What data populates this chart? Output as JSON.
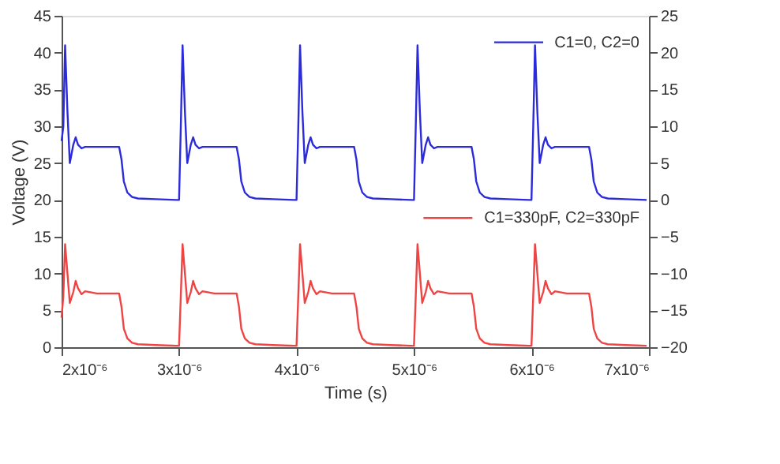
{
  "chart_data": {
    "type": "line",
    "xlabel": "Time (s)",
    "ylabel": "Voltage (V)",
    "x": [
      2e-06,
      2.015e-06,
      2.03e-06,
      2.05e-06,
      2.07e-06,
      2.1e-06,
      2.12e-06,
      2.14e-06,
      2.17e-06,
      2.2e-06,
      2.3e-06,
      2.49e-06,
      2.51e-06,
      2.53e-06,
      2.56e-06,
      2.6e-06,
      2.65e-06,
      2.8e-06,
      2.98e-06,
      3e-06,
      3.015e-06,
      3.03e-06,
      3.05e-06,
      3.07e-06,
      3.1e-06,
      3.12e-06,
      3.14e-06,
      3.17e-06,
      3.2e-06,
      3.3e-06,
      3.49e-06,
      3.51e-06,
      3.53e-06,
      3.56e-06,
      3.6e-06,
      3.65e-06,
      3.8e-06,
      3.98e-06,
      4e-06,
      4.015e-06,
      4.03e-06,
      4.05e-06,
      4.07e-06,
      4.1e-06,
      4.12e-06,
      4.14e-06,
      4.17e-06,
      4.2e-06,
      4.3e-06,
      4.49e-06,
      4.51e-06,
      4.53e-06,
      4.56e-06,
      4.6e-06,
      4.65e-06,
      4.8e-06,
      4.98e-06,
      5e-06,
      5.015e-06,
      5.03e-06,
      5.05e-06,
      5.07e-06,
      5.1e-06,
      5.12e-06,
      5.14e-06,
      5.17e-06,
      5.2e-06,
      5.3e-06,
      5.49e-06,
      5.51e-06,
      5.53e-06,
      5.56e-06,
      5.6e-06,
      5.65e-06,
      5.8e-06,
      5.98e-06,
      6e-06,
      6.015e-06,
      6.03e-06,
      6.05e-06,
      6.07e-06,
      6.1e-06,
      6.12e-06,
      6.14e-06,
      6.17e-06,
      6.2e-06,
      6.3e-06,
      6.49e-06,
      6.51e-06,
      6.53e-06,
      6.56e-06,
      6.6e-06,
      6.65e-06,
      6.8e-06,
      6.98e-06
    ],
    "series": [
      {
        "name": "C1=0, C2=0",
        "color": "#2b2bd9",
        "axis": "y2",
        "values": [
          8,
          10,
          21,
          12,
          5,
          7.5,
          8.5,
          7.5,
          7,
          7.2,
          7.2,
          7.2,
          5.5,
          2.5,
          1,
          0.4,
          0.2,
          0.1,
          0,
          0,
          10,
          21,
          12,
          5,
          7.5,
          8.5,
          7.5,
          7,
          7.2,
          7.2,
          7.2,
          5.5,
          2.5,
          1,
          0.4,
          0.2,
          0.1,
          0,
          0,
          10,
          21,
          12,
          5,
          7.5,
          8.5,
          7.5,
          7,
          7.2,
          7.2,
          7.2,
          5.5,
          2.5,
          1,
          0.4,
          0.2,
          0.1,
          0,
          0,
          10,
          21,
          12,
          5,
          7.5,
          8.5,
          7.5,
          7,
          7.2,
          7.2,
          7.2,
          5.5,
          2.5,
          1,
          0.4,
          0.2,
          0.1,
          0,
          0,
          10,
          21,
          12,
          5,
          7.5,
          8.5,
          7.5,
          7,
          7.2,
          7.2,
          7.2,
          5.5,
          2.5,
          1,
          0.4,
          0.2,
          0.1,
          0
        ]
      },
      {
        "name": "C1=330pF, C2=330pF",
        "color": "#ee4444",
        "axis": "y",
        "values": [
          4,
          7,
          14,
          10,
          6,
          7.5,
          9,
          8,
          7.2,
          7.6,
          7.3,
          7.3,
          5.5,
          2.5,
          1.2,
          0.6,
          0.4,
          0.3,
          0.2,
          0.2,
          7,
          14,
          10,
          6,
          7.5,
          9,
          8,
          7.2,
          7.6,
          7.3,
          7.3,
          5.5,
          2.5,
          1.2,
          0.6,
          0.4,
          0.3,
          0.2,
          0.2,
          7,
          14,
          10,
          6,
          7.5,
          9,
          8,
          7.2,
          7.6,
          7.3,
          7.3,
          5.5,
          2.5,
          1.2,
          0.6,
          0.4,
          0.3,
          0.2,
          0.2,
          7,
          14,
          10,
          6,
          7.5,
          9,
          8,
          7.2,
          7.6,
          7.3,
          7.3,
          5.5,
          2.5,
          1.2,
          0.6,
          0.4,
          0.3,
          0.2,
          0.2,
          7,
          14,
          10,
          6,
          7.5,
          9,
          8,
          7.2,
          7.6,
          7.3,
          7.3,
          5.5,
          2.5,
          1.2,
          0.6,
          0.4,
          0.3,
          0.2
        ]
      }
    ],
    "xlim": [
      2e-06,
      7e-06
    ],
    "xticks": [
      {
        "value": 2e-06,
        "label": "2x10⁻⁶"
      },
      {
        "value": 3e-06,
        "label": "3x10⁻⁶"
      },
      {
        "value": 4e-06,
        "label": "4x10⁻⁶"
      },
      {
        "value": 5e-06,
        "label": "5x10⁻⁶"
      },
      {
        "value": 6e-06,
        "label": "6x10⁻⁶"
      },
      {
        "value": 7e-06,
        "label": "7x10⁻⁶"
      }
    ],
    "ylim": [
      0,
      45
    ],
    "yticks": [
      0,
      5,
      10,
      15,
      20,
      25,
      30,
      35,
      40,
      45
    ],
    "y2lim": [
      -20,
      25
    ],
    "y2ticks": [
      -20,
      -15,
      -10,
      -5,
      0,
      5,
      10,
      15,
      20,
      25
    ],
    "grid": false,
    "legend": "right",
    "marker": "none",
    "line_style": "solid"
  }
}
